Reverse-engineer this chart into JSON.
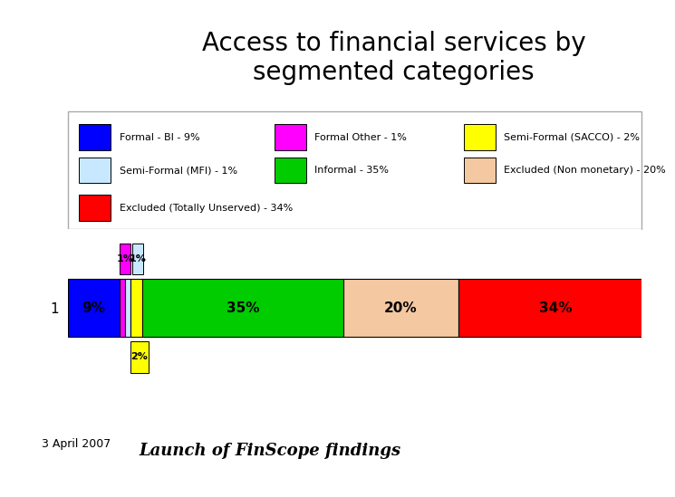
{
  "title": "Access to financial services by\nsegmented categories",
  "title_fontsize": 20,
  "background_color": "#ffffff",
  "segments": [
    {
      "label": "Formal - BI - 9%",
      "value": 9,
      "color": "#0000ff"
    },
    {
      "label": "Formal Other - 1%",
      "value": 1,
      "color": "#ff00ff"
    },
    {
      "label": "Semi-Formal (MFI) - 1%",
      "value": 1,
      "color": "#c8e8ff"
    },
    {
      "label": "Semi-Formal (SACCO) - 2%",
      "value": 2,
      "color": "#ffff00"
    },
    {
      "label": "Informal - 35%",
      "value": 35,
      "color": "#00cc00"
    },
    {
      "label": "Excluded (Non monetary) - 20%",
      "value": 20,
      "color": "#f4c8a0"
    },
    {
      "label": "Excluded (Totally Unserved) - 34%",
      "value": 34,
      "color": "#ff0000"
    }
  ],
  "bar_label_fontsize": 11,
  "legend_fontsize": 8,
  "ytick_label": "1",
  "footer_left": "3 April 2007",
  "footer_center": "Launch of FinScope findings",
  "legend_entries": [
    [
      [
        "Formal - BI - 9%",
        "#0000ff",
        true
      ],
      [
        "Formal Other - 1%",
        "#ff00ff",
        true
      ],
      [
        "Semi-Formal (SACCO) - 2%",
        "#ffff00",
        false
      ]
    ],
    [
      [
        "Semi-Formal (MFI) - 1%",
        "#c8e8ff",
        false
      ],
      [
        "Informal - 35%",
        "#00cc00",
        true
      ],
      [
        "Excluded (Non monetary) - 20%",
        "#f4c8a0",
        false
      ]
    ],
    [
      [
        "Excluded (Totally Unserved) - 34%",
        "#ff0000",
        true
      ],
      null,
      null
    ]
  ]
}
